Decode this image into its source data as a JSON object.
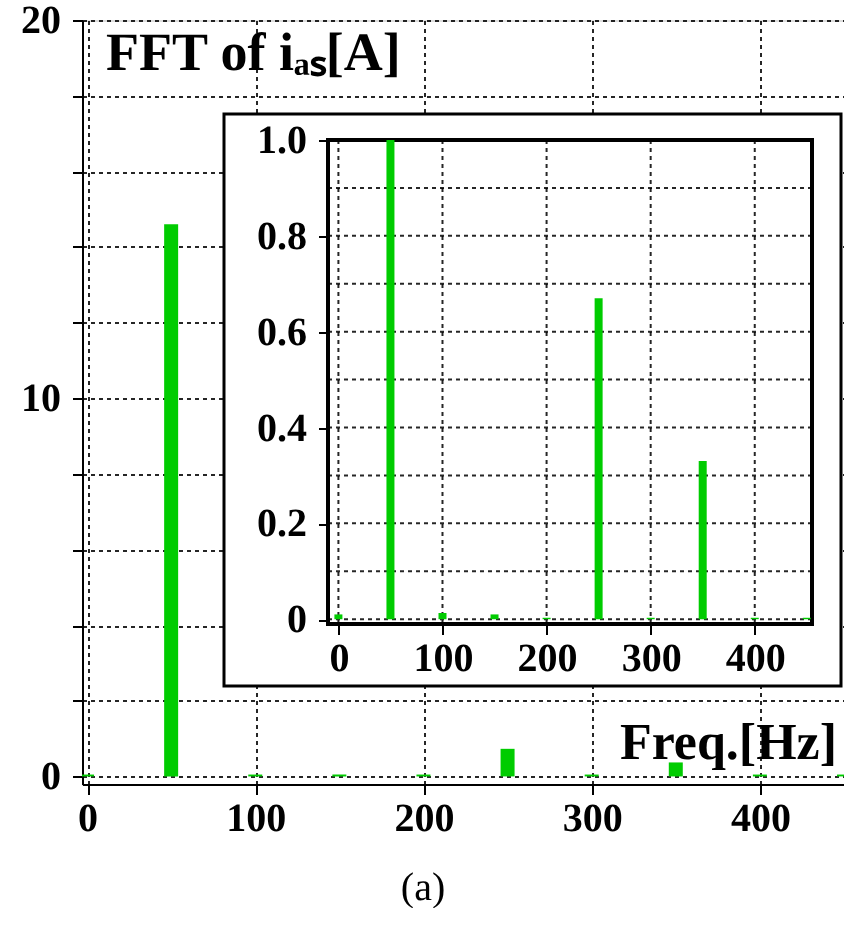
{
  "chart_data": [
    {
      "type": "bar",
      "title": "FFT of iₐₛ[A]",
      "xlabel": "Freq.[Hz]",
      "x": [
        0,
        50,
        100,
        150,
        200,
        250,
        300,
        350,
        400,
        450
      ],
      "values": [
        0.05,
        14.6,
        0.05,
        0.05,
        0.05,
        0.73,
        0.05,
        0.37,
        0.05,
        0.05
      ],
      "color": "#00cc00",
      "xlim": [
        -3,
        450
      ],
      "xticks": [
        0,
        100,
        200,
        300,
        400
      ],
      "ylim": [
        -0.2,
        20
      ],
      "yticks": [
        0,
        {
          "value": 2,
          "label": null
        },
        {
          "value": 4,
          "label": null
        },
        {
          "value": 6,
          "label": null
        },
        {
          "value": 8,
          "label": null
        },
        10,
        {
          "value": 12,
          "label": null
        },
        {
          "value": 14,
          "label": null
        },
        {
          "value": 16,
          "label": null
        },
        {
          "value": 18,
          "label": null
        },
        20
      ],
      "grid": true,
      "annotations": [
        "(a)"
      ]
    },
    {
      "type": "bar",
      "x": [
        0,
        50,
        100,
        150,
        200,
        250,
        300,
        350,
        400,
        450
      ],
      "values": [
        0.01,
        1.0,
        0.013,
        0.01,
        0.003,
        0.67,
        0.003,
        0.33,
        0.003,
        0.003
      ],
      "color": "#00cc00",
      "xlim": [
        -10,
        455
      ],
      "xticks": [
        0,
        100,
        200,
        300,
        400
      ],
      "ylim": [
        -0.01,
        1.0
      ],
      "yticks": [
        0,
        {
          "value": 0.1,
          "label": null
        },
        0.2,
        {
          "value": 0.3,
          "label": null
        },
        0.4,
        {
          "value": 0.5,
          "label": null
        },
        0.6,
        {
          "value": 0.7,
          "label": null
        },
        0.8,
        {
          "value": 0.9,
          "label": null
        },
        {
          "value": 1.0,
          "label": "1.0"
        }
      ],
      "grid": true
    }
  ]
}
